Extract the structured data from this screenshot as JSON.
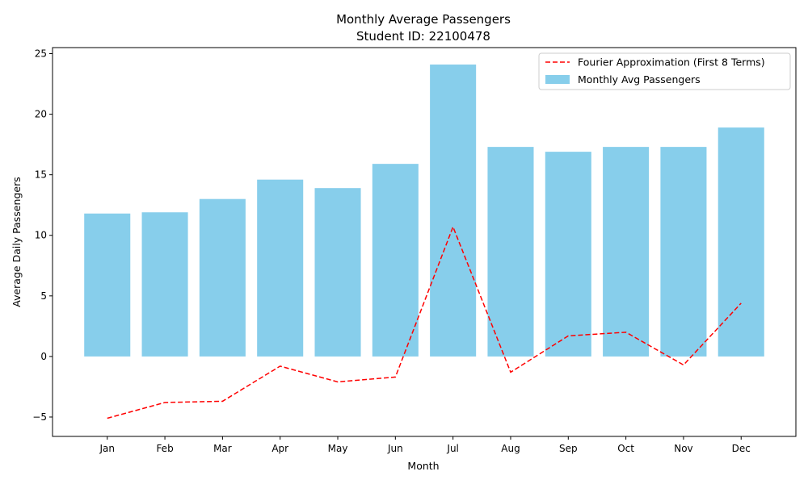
{
  "chart_data": {
    "type": "bar",
    "title": "Monthly Average Passengers",
    "subtitle": "Student ID: 22100478",
    "xlabel": "Month",
    "ylabel": "Average Daily Passengers",
    "categories": [
      "Jan",
      "Feb",
      "Mar",
      "Apr",
      "May",
      "Jun",
      "Jul",
      "Aug",
      "Sep",
      "Oct",
      "Nov",
      "Dec"
    ],
    "ylim": [
      -6.6,
      25.5
    ],
    "yticks": [
      -5,
      0,
      5,
      10,
      15,
      20,
      25
    ],
    "ytick_labels": [
      "−5",
      "0",
      "5",
      "10",
      "15",
      "20",
      "25"
    ],
    "series": [
      {
        "name": "Monthly Avg Passengers",
        "kind": "bar",
        "color": "#87CEEB",
        "values": [
          11.8,
          11.9,
          13.0,
          14.6,
          13.9,
          15.9,
          24.1,
          17.3,
          16.9,
          17.3,
          17.3,
          18.9
        ]
      },
      {
        "name": "Fourier Approximation (First 8 Terms)",
        "kind": "line",
        "style": "dashed",
        "color": "#ff0000",
        "values": [
          -5.1,
          -3.8,
          -3.7,
          -0.8,
          -2.1,
          -1.7,
          10.7,
          -1.3,
          1.7,
          2.0,
          -0.7,
          4.4
        ]
      }
    ],
    "legend": {
      "placement": "top-right",
      "order": [
        "Fourier Approximation (First 8 Terms)",
        "Monthly Avg Passengers"
      ]
    },
    "grid": false
  }
}
